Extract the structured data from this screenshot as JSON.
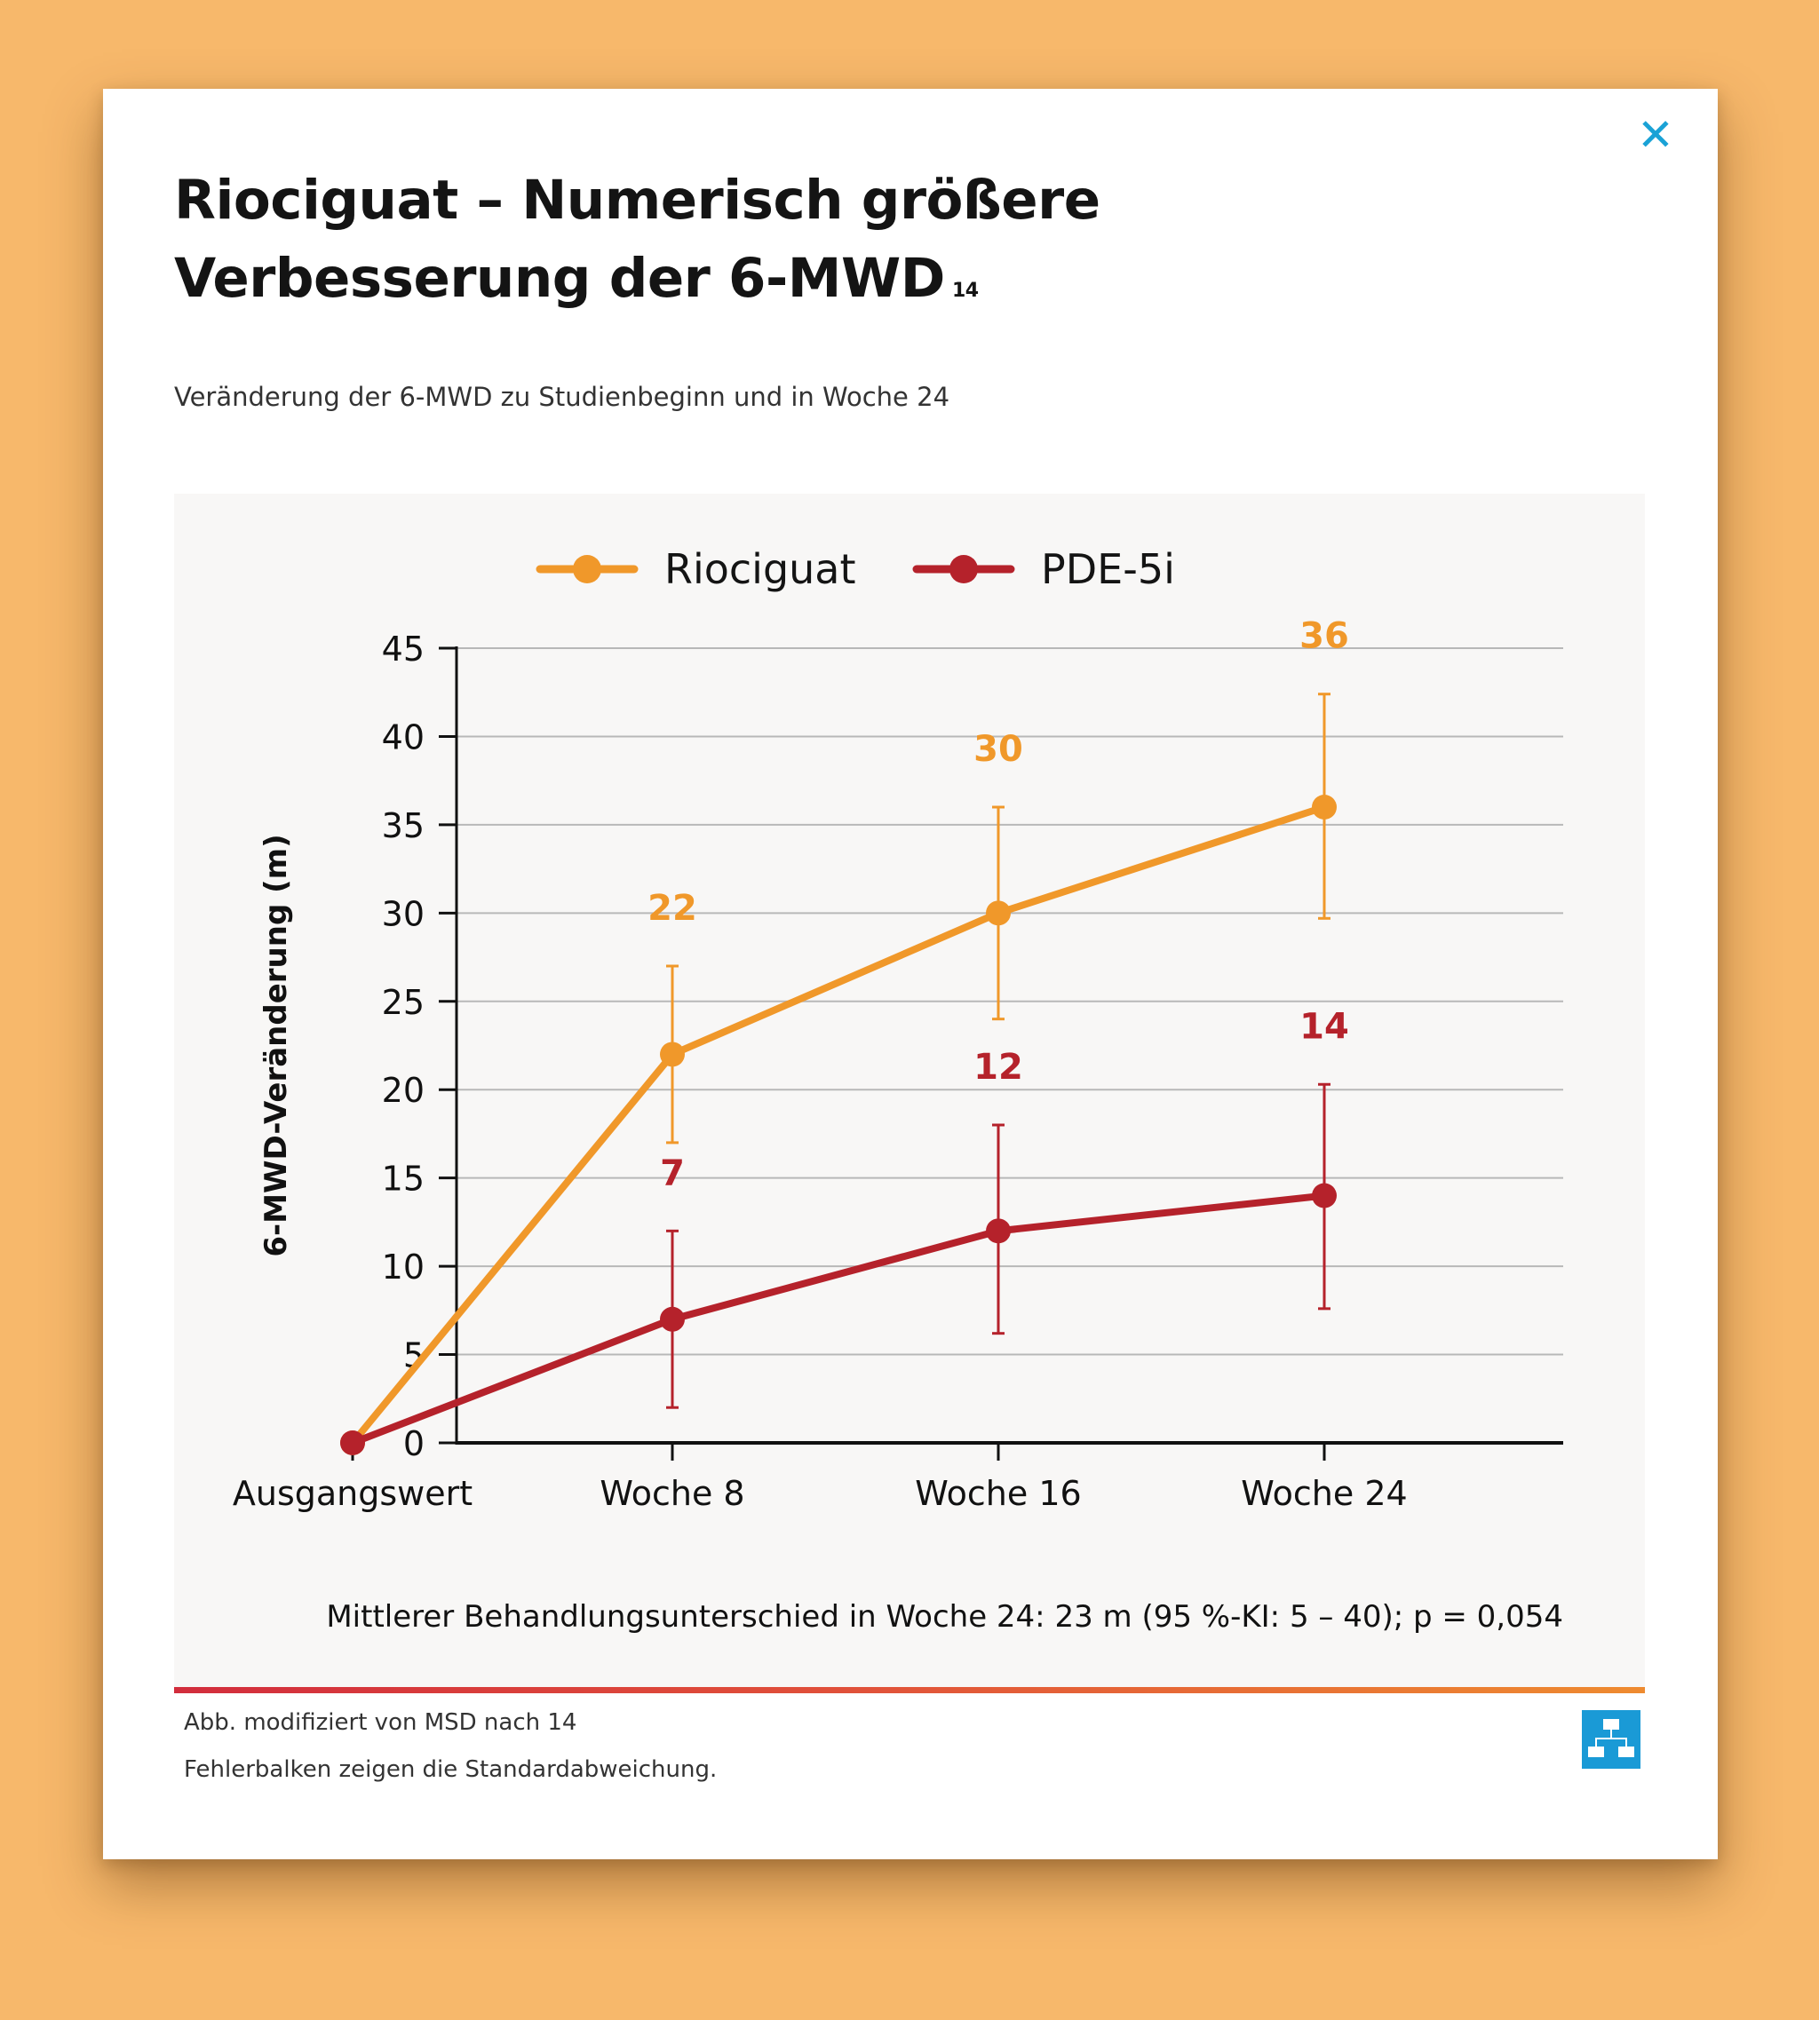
{
  "modal": {
    "title_line1": "Riociguat – Numerisch größere",
    "title_line2": "Verbesserung der 6-MWD",
    "title_superscript": "14",
    "subtitle": "Veränderung der 6-MWD zu Studienbeginn und in Woche 24",
    "close_icon": "close-icon",
    "footnote_1": "Abb. modifiziert von MSD nach 14",
    "footnote_2": "Fehlerbalken zeigen die Standardabweichung.",
    "sitemap_icon": "sitemap-icon"
  },
  "chart_data": {
    "type": "line",
    "categories": [
      "Ausgangswert",
      "Woche 8",
      "Woche 16",
      "Woche 24"
    ],
    "ylabel": "6-MWD-Veränderung (m)",
    "xlabel": "",
    "ylim": [
      0,
      45
    ],
    "yticks": [
      0,
      5,
      10,
      15,
      20,
      25,
      30,
      35,
      40,
      45
    ],
    "grid": true,
    "legend_position": "top",
    "series": [
      {
        "name": "Riociguat",
        "color": "#f0982a",
        "values": [
          0,
          22,
          30,
          36
        ],
        "error_low": [
          0,
          17,
          24,
          29.7
        ],
        "error_high": [
          0,
          27,
          36,
          42.4
        ],
        "labels": [
          "",
          "22",
          "30",
          "36"
        ]
      },
      {
        "name": "PDE-5i",
        "color": "#b5222b",
        "values": [
          0,
          7,
          12,
          14
        ],
        "error_low": [
          0,
          2,
          6.2,
          7.6
        ],
        "error_high": [
          0,
          12,
          18,
          20.3
        ],
        "labels": [
          "",
          "7",
          "12",
          "14"
        ]
      }
    ],
    "annotation": "Mittlerer Behandlungsunterschied in Woche 24: 23 m (95 %-KI: 5 – 40); p = 0,054"
  }
}
